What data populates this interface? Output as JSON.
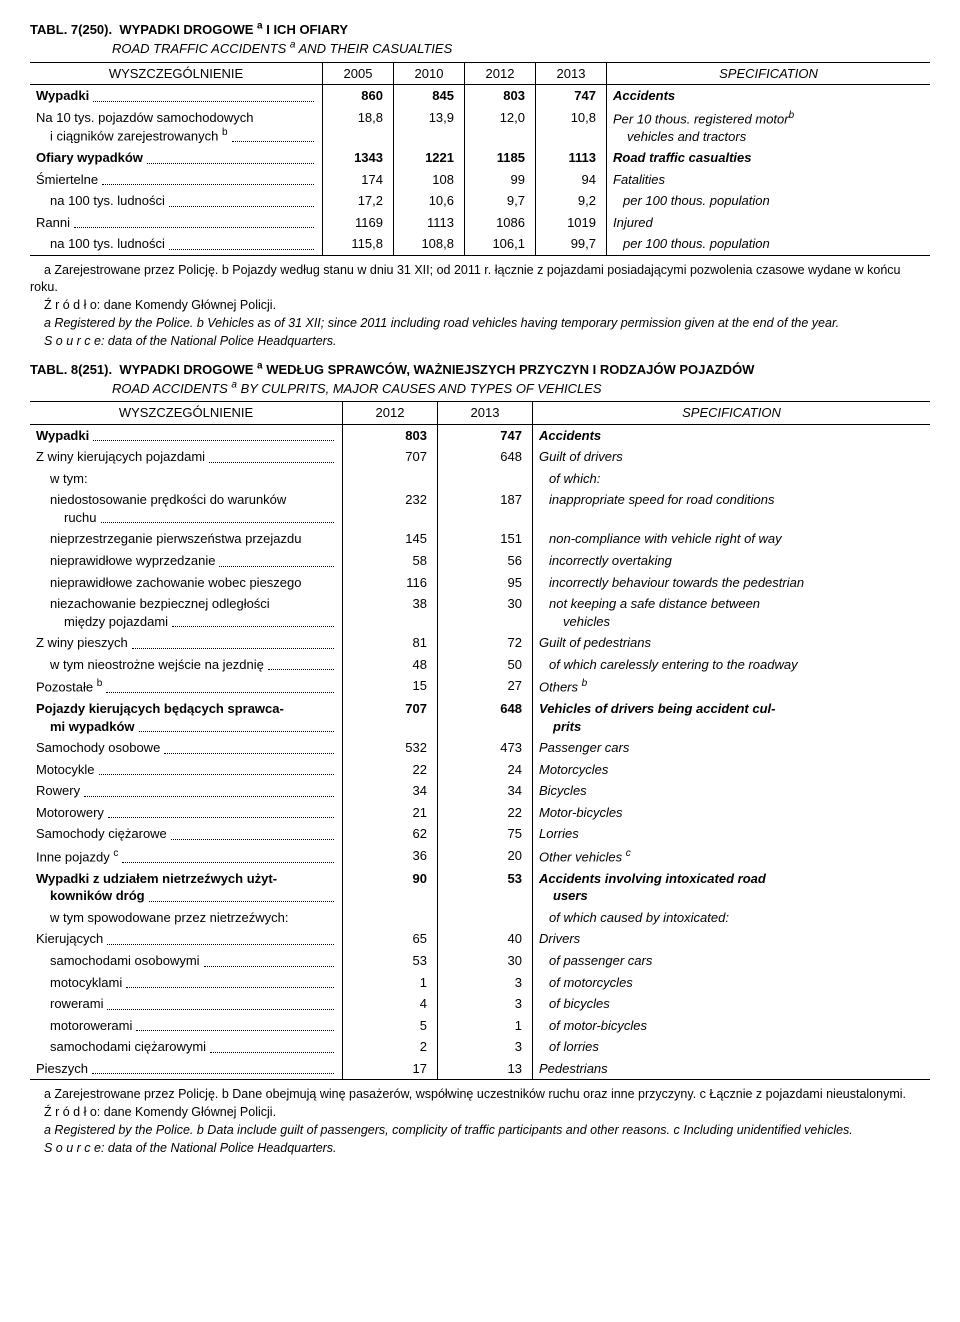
{
  "table7": {
    "label": "TABL. 7(250).",
    "title_pl": "WYPADKI  DROGOWE ",
    "title_pl2": " I  ICH  OFIARY",
    "title_en": "ROAD  TRAFFIC  ACCIDENTS ",
    "title_en2": " AND  THEIR  CASUALTIES",
    "sup_a": "a",
    "header_spec_pl": "WYSZCZEGÓLNIENIE",
    "header_spec_en": "SPECIFICATION",
    "years": [
      "2005",
      "2010",
      "2012",
      "2013"
    ],
    "rows": [
      {
        "pl": "Wypadki",
        "v": [
          "860",
          "845",
          "803",
          "747"
        ],
        "en": "Accidents",
        "bold": true
      },
      {
        "pl": "Na 10 tys. pojazdów samochodowych",
        "pl2": "i ciągników zarejestrowanych ",
        "sup": "b",
        "v": [
          "18,8",
          "13,9",
          "12,0",
          "10,8"
        ],
        "en": "Per 10 thous. registered motor",
        "en2": "vehicles and tractors ",
        "ensup": "b",
        "indent": 0,
        "twoLinePl": true
      },
      {
        "pl": "Ofiary wypadków",
        "v": [
          "1343",
          "1221",
          "1185",
          "1113"
        ],
        "en": "Road traffic casualties",
        "bold": true
      },
      {
        "pl": "Śmiertelne",
        "v": [
          "174",
          "108",
          "99",
          "94"
        ],
        "en": "Fatalities"
      },
      {
        "pl": "na 100 tys. ludności",
        "v": [
          "17,2",
          "10,6",
          "9,7",
          "9,2"
        ],
        "en": "per 100 thous. population",
        "indent": 1
      },
      {
        "pl": "Ranni",
        "v": [
          "1169",
          "1113",
          "1086",
          "1019"
        ],
        "en": "Injured"
      },
      {
        "pl": "na 100 tys. ludności",
        "v": [
          "115,8",
          "108,8",
          "106,1",
          "99,7"
        ],
        "en": "per 100 thous. population",
        "indent": 1
      }
    ],
    "foot_pl1": "a Zarejestrowane przez Policję. b Pojazdy według stanu w dniu 31 XII; od 2011 r. łącznie z pojazdami posiadającymi pozwolenia czasowe wydane w końcu roku.",
    "foot_pl2": "Ź r ó d ł o: dane Komendy Głównej Policji.",
    "foot_en1": "a Registered by the Police. b Vehicles as of 31 XII; since 2011 including road vehicles having temporary permission given at the end of the year.",
    "foot_en2": "S o u r c e: data of the National Police Headquarters."
  },
  "table8": {
    "label": "TABL. 8(251).",
    "title_pl": "WYPADKI  DROGOWE ",
    "title_pl2": " WEDŁUG  SPRAWCÓW,  WAŻNIEJSZYCH  PRZYCZYN  I  RODZAJÓW POJAZDÓW",
    "title_en": "ROAD  ACCIDENTS ",
    "title_en2": " BY  CULPRITS,  MAJOR  CAUSES  AND  TYPES  OF  VEHICLES",
    "sup_a": "a",
    "header_spec_pl": "WYSZCZEGÓLNIENIE",
    "header_spec_en": "SPECIFICATION",
    "years": [
      "2012",
      "2013"
    ],
    "rows": [
      {
        "pl": "Wypadki",
        "v": [
          "803",
          "747"
        ],
        "en": "Accidents",
        "bold": true
      },
      {
        "pl": "Z winy kierujących pojazdami",
        "v": [
          "707",
          "648"
        ],
        "en": "Guilt of drivers"
      },
      {
        "pl": "w tym:",
        "v": [
          "",
          ""
        ],
        "en": "of which:",
        "indent": 1,
        "nodots": true
      },
      {
        "pl": "niedostosowanie prędkości do warunków",
        "pl2": "ruchu",
        "v": [
          "232",
          "187"
        ],
        "en": "inappropriate speed for road conditions",
        "indent": 1,
        "twoLinePl": true,
        "indent2": 2
      },
      {
        "pl": "nieprzestrzeganie pierwszeństwa przejazdu",
        "v": [
          "145",
          "151"
        ],
        "en": "non-compliance with vehicle right of way",
        "indent": 1,
        "nodots": true
      },
      {
        "pl": "nieprawidłowe wyprzedzanie",
        "v": [
          "58",
          "56"
        ],
        "en": "incorrectly overtaking",
        "indent": 1
      },
      {
        "pl": "nieprawidłowe zachowanie wobec pieszego",
        "v": [
          "116",
          "95"
        ],
        "en": "incorrectly behaviour towards the pedestrian",
        "indent": 1,
        "nodots": true
      },
      {
        "pl": "niezachowanie bezpiecznej odległości",
        "pl2": "między pojazdami",
        "v": [
          "38",
          "30"
        ],
        "en": "not keeping a safe distance between",
        "en2": "vehicles",
        "indent": 1,
        "twoLinePl": true,
        "indent2": 2
      },
      {
        "pl": "Z winy pieszych",
        "v": [
          "81",
          "72"
        ],
        "en": "Guilt of pedestrians"
      },
      {
        "pl": "w tym nieostrożne wejście na jezdnię",
        "v": [
          "48",
          "50"
        ],
        "en": "of which carelessly entering to the roadway",
        "indent": 1
      },
      {
        "pl": "Pozostałe ",
        "sup": "b",
        "v": [
          "15",
          "27"
        ],
        "en": "Others ",
        "ensup": "b"
      },
      {
        "pl": "Pojazdy kierujących będących sprawca-",
        "pl2": "mi wypadków",
        "v": [
          "707",
          "648"
        ],
        "en": "Vehicles of drivers being accident cul-",
        "en2": "prits",
        "bold": true,
        "twoLinePl": true,
        "indent2": 1
      },
      {
        "pl": "Samochody osobowe",
        "v": [
          "532",
          "473"
        ],
        "en": "Passenger cars"
      },
      {
        "pl": "Motocykle",
        "v": [
          "22",
          "24"
        ],
        "en": "Motorcycles"
      },
      {
        "pl": "Rowery",
        "v": [
          "34",
          "34"
        ],
        "en": "Bicycles"
      },
      {
        "pl": "Motorowery",
        "v": [
          "21",
          "22"
        ],
        "en": "Motor-bicycles"
      },
      {
        "pl": "Samochody ciężarowe",
        "v": [
          "62",
          "75"
        ],
        "en": "Lorries"
      },
      {
        "pl": "Inne pojazdy ",
        "sup": "c",
        "v": [
          "36",
          "20"
        ],
        "en": "Other vehicles ",
        "ensup": "c"
      },
      {
        "pl": "Wypadki z udziałem nietrzeźwych użyt-",
        "pl2": "kowników dróg",
        "v": [
          "90",
          "53"
        ],
        "en": "Accidents involving intoxicated road",
        "en2": "users",
        "bold": true,
        "twoLinePl": true,
        "indent2": 1
      },
      {
        "pl": "w tym spowodowane przez nietrzeźwych:",
        "v": [
          "",
          ""
        ],
        "en": "of which caused by intoxicated:",
        "indent": 1,
        "nodots": true
      },
      {
        "pl": "Kierujących",
        "v": [
          "65",
          "40"
        ],
        "en": "Drivers"
      },
      {
        "pl": "samochodami osobowymi",
        "v": [
          "53",
          "30"
        ],
        "en": "of passenger cars",
        "indent": 1
      },
      {
        "pl": "motocyklami",
        "v": [
          "1",
          "3"
        ],
        "en": "of motorcycles",
        "indent": 1
      },
      {
        "pl": "rowerami",
        "v": [
          "4",
          "3"
        ],
        "en": "of bicycles",
        "indent": 1
      },
      {
        "pl": "motorowerami",
        "v": [
          "5",
          "1"
        ],
        "en": "of motor-bicycles",
        "indent": 1
      },
      {
        "pl": "samochodami ciężarowymi",
        "v": [
          "2",
          "3"
        ],
        "en": "of lorries",
        "indent": 1
      },
      {
        "pl": "Pieszych",
        "v": [
          "17",
          "13"
        ],
        "en": "Pedestrians"
      }
    ],
    "foot_pl1": "a Zarejestrowane przez Policję. b Dane obejmują winę pasażerów, współwinę uczestników ruchu oraz inne przyczyny. c Łącznie z pojazdami nieustalonymi.",
    "foot_pl2": "Ź r ó d ł o: dane Komendy Głównej Policji.",
    "foot_en1": "a Registered by the Police. b Data include guilt of passengers, complicity of traffic participants and other reasons. c Including unidentified vehicles.",
    "foot_en2": "S o u r c e: data of the National Police Headquarters."
  }
}
